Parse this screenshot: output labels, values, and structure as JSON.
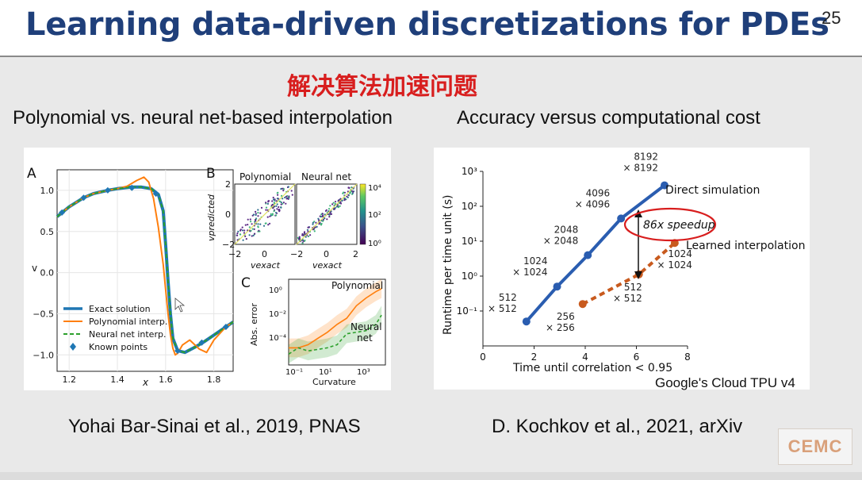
{
  "slide": {
    "title": "Learning data-driven discretizations for PDEs",
    "page_number": "25",
    "subtitle_cn": "解决算法加速问题",
    "caption_left": "Polynomial vs. neural net-based interpolation",
    "caption_right": "Accuracy versus computational cost",
    "citation_left": "Yohai Bar-Sinai et al., 2019, PNAS",
    "citation_right": "D. Kochkov et al., 2021, arXiv",
    "note_tpu": "Google's Cloud TPU v4",
    "logo_text": "CEMC"
  },
  "colors": {
    "title": "#1f3f7a",
    "subtitle": "#d81e1e",
    "exact": "#1f77b4",
    "polynomial": "#ff7f0e",
    "neural": "#2ca02c",
    "known": "#1f77b4",
    "direct": "#2a5db0",
    "learned": "#c85a1e",
    "highlight": "#d81e1e"
  },
  "chart_data": [
    {
      "type": "line",
      "panel_label": "A",
      "xlabel": "x",
      "ylabel": "v",
      "xlim": [
        1.15,
        1.88
      ],
      "ylim": [
        -1.2,
        1.25
      ],
      "xticks": [
        "1.2",
        "1.4",
        "1.6",
        "1.8"
      ],
      "yticks": [
        "1.0",
        "0.5",
        "0.0",
        "−0.5",
        "−1.0"
      ],
      "ytick_values": [
        1.0,
        0.5,
        0.0,
        -0.5,
        -1.0
      ],
      "xtick_values": [
        1.2,
        1.4,
        1.6,
        1.8
      ],
      "legend": {
        "placement": "lower-left",
        "entries": [
          "Exact solution",
          "Polynomial interp.",
          "Neural net interp.",
          "Known points"
        ]
      },
      "series": [
        {
          "name": "Exact solution",
          "x": [
            1.15,
            1.2,
            1.26,
            1.3,
            1.36,
            1.4,
            1.46,
            1.5,
            1.54,
            1.57,
            1.59,
            1.6,
            1.61,
            1.62,
            1.63,
            1.65,
            1.68,
            1.72,
            1.76,
            1.8,
            1.85,
            1.88
          ],
          "y": [
            0.68,
            0.8,
            0.91,
            0.96,
            1.0,
            1.02,
            1.04,
            1.04,
            1.02,
            0.95,
            0.75,
            0.35,
            -0.1,
            -0.5,
            -0.8,
            -0.95,
            -0.97,
            -0.91,
            -0.84,
            -0.76,
            -0.66,
            -0.6
          ]
        },
        {
          "name": "Polynomial interp.",
          "x": [
            1.15,
            1.2,
            1.26,
            1.3,
            1.36,
            1.4,
            1.44,
            1.48,
            1.51,
            1.53,
            1.55,
            1.57,
            1.59,
            1.6,
            1.61,
            1.62,
            1.63,
            1.64,
            1.65,
            1.67,
            1.7,
            1.74,
            1.77,
            1.8,
            1.85,
            1.88
          ],
          "y": [
            0.68,
            0.8,
            0.91,
            0.96,
            1.0,
            1.02,
            1.05,
            1.12,
            1.16,
            1.1,
            0.9,
            0.55,
            0.1,
            -0.2,
            -0.5,
            -0.75,
            -0.92,
            -1.0,
            -0.98,
            -0.88,
            -0.82,
            -0.93,
            -0.97,
            -0.82,
            -0.66,
            -0.6
          ]
        },
        {
          "name": "Neural net interp.",
          "x": [
            1.15,
            1.2,
            1.26,
            1.3,
            1.36,
            1.4,
            1.46,
            1.5,
            1.54,
            1.57,
            1.59,
            1.6,
            1.61,
            1.62,
            1.63,
            1.65,
            1.68,
            1.72,
            1.76,
            1.8,
            1.85,
            1.88
          ],
          "y": [
            0.68,
            0.8,
            0.91,
            0.96,
            1.0,
            1.02,
            1.04,
            1.04,
            1.02,
            0.95,
            0.75,
            0.35,
            -0.1,
            -0.5,
            -0.8,
            -0.95,
            -0.97,
            -0.91,
            -0.84,
            -0.76,
            -0.66,
            -0.6
          ]
        }
      ],
      "known_points": {
        "name": "Known points",
        "x": [
          1.17,
          1.26,
          1.36,
          1.46,
          1.56,
          1.65,
          1.75,
          1.85
        ],
        "y": [
          0.73,
          0.91,
          1.0,
          1.03,
          0.96,
          -0.95,
          -0.85,
          -0.66
        ]
      }
    },
    {
      "type": "scatter",
      "panel_label": "B",
      "titles": [
        "Polynomial",
        "Neural net"
      ],
      "xlabel": "vexact",
      "ylabel": "vpredicted",
      "xlim": [
        -2,
        2
      ],
      "ylim": [
        -2,
        2
      ],
      "xticks": [
        "−2",
        "0",
        "2"
      ],
      "yticks": [
        "2",
        "0",
        "−2"
      ],
      "colorbar_ticks": [
        "10⁴",
        "10²",
        "10⁰"
      ]
    },
    {
      "type": "line",
      "panel_label": "C",
      "xlabel": "Curvature",
      "ylabel": "Abs. error",
      "xlim_log10": [
        -1,
        4
      ],
      "ylim_log10": [
        -5,
        0.5
      ],
      "xticks": [
        "10⁻¹",
        "10¹",
        "10³"
      ],
      "yticks": [
        "10⁰",
        "10⁻²",
        "10⁻⁴"
      ],
      "annotations": [
        "Polynomial",
        "Neural net"
      ],
      "series": [
        {
          "name": "Polynomial",
          "x_log10": [
            -1,
            -0.5,
            0,
            0.5,
            1,
            1.5,
            2,
            2.5,
            3,
            3.5,
            3.8
          ],
          "y_log10": [
            -3.9,
            -3.9,
            -3.7,
            -3.3,
            -2.9,
            -2.4,
            -2.0,
            -1.2,
            -0.7,
            -0.3,
            -0.1
          ]
        },
        {
          "name": "Neural net",
          "x_log10": [
            -1,
            -0.5,
            0,
            0.5,
            1,
            1.5,
            2,
            2.5,
            3,
            3.5,
            3.8
          ],
          "y_log10": [
            -4.3,
            -3.9,
            -4.1,
            -4.0,
            -3.9,
            -3.7,
            -3.0,
            -2.9,
            -2.8,
            -2.4,
            -1.8
          ]
        }
      ]
    },
    {
      "type": "line",
      "panel_label": "",
      "xlabel": "Time until correlation < 0.95",
      "ylabel": "Runtime per time unit (s)",
      "xlim": [
        0,
        8
      ],
      "ylim_log10": [
        -2,
        3
      ],
      "yscale": "log",
      "xticks": [
        "0",
        "2",
        "4",
        "6",
        "8"
      ],
      "xtick_values": [
        0,
        2,
        4,
        6,
        8
      ],
      "yticks": [
        "10³",
        "10²",
        "10¹",
        "10⁰",
        "10⁻¹"
      ],
      "ytick_log10": [
        3,
        2,
        1,
        0,
        -1
      ],
      "series": [
        {
          "name": "Direct simulation",
          "x": [
            1.7,
            2.9,
            4.1,
            5.4,
            7.1
          ],
          "y_log10": [
            -1.3,
            -0.3,
            0.6,
            1.65,
            2.6
          ],
          "point_labels": [
            "512\n× 512",
            "1024\n× 1024",
            "2048\n× 2048",
            "4096\n× 4096",
            "8192\n× 8192"
          ]
        },
        {
          "name": "Learned interpolation",
          "x": [
            3.9,
            6.1,
            7.5
          ],
          "y_log10": [
            -0.8,
            0.05,
            0.95
          ],
          "point_labels": [
            "256\n× 256",
            "512\n× 512",
            "1024\n× 1024"
          ]
        }
      ],
      "annotations": [
        "86x speedup"
      ]
    }
  ]
}
